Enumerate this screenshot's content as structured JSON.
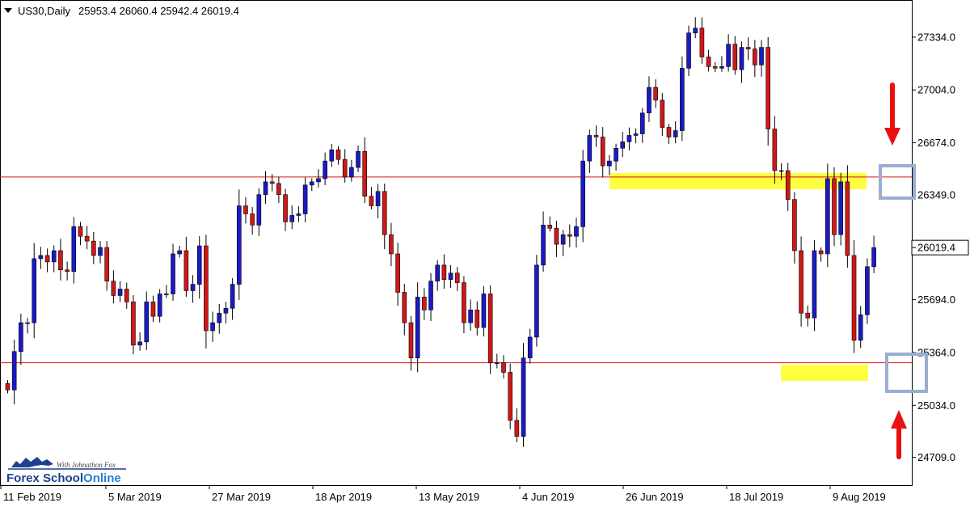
{
  "header": {
    "symbol": "US30,Daily",
    "ohlc": "25953.4 26060.4 25942.4 26019.4"
  },
  "price_axis": {
    "ticks": [
      "27334.0",
      "27004.0",
      "26674.0",
      "26349.0",
      "26019.4",
      "25694.0",
      "25364.0",
      "25034.0",
      "24709.0"
    ],
    "current_price_label": "26019.4"
  },
  "time_axis": {
    "labels": [
      "11 Feb 2019",
      "5 Mar 2019",
      "27 Mar 2019",
      "18 Apr 2019",
      "13 May 2019",
      "4 Jun 2019",
      "26 Jun 2019",
      "18 Jul 2019",
      "9 Aug 2019"
    ]
  },
  "logo": {
    "tagline": "With Johnathon Fox",
    "brand_part1": "Forex School",
    "brand_part2": "Online"
  },
  "colors": {
    "bull": "#1a1ac8",
    "bear": "#d01818",
    "line": "#e01010",
    "zone": "#ffff40",
    "box": "#9aaed0",
    "arrow": "#e81010"
  },
  "chart_data": {
    "type": "candlestick",
    "y_range": [
      24609,
      27500
    ],
    "resistance_level": 26460,
    "support_level": 25300,
    "closes": [
      25130,
      25370,
      25550,
      25550,
      25950,
      25970,
      25930,
      26000,
      25880,
      25870,
      26150,
      26090,
      26060,
      25970,
      26020,
      25810,
      25720,
      25760,
      25680,
      25410,
      25430,
      25680,
      25590,
      25730,
      25730,
      25980,
      26000,
      25750,
      25790,
      26030,
      25500,
      25550,
      25610,
      25640,
      25790,
      26280,
      26230,
      26160,
      26350,
      26430,
      26420,
      26350,
      26180,
      26220,
      26230,
      26410,
      26430,
      26450,
      26560,
      26630,
      26570,
      26460,
      26520,
      26620,
      26340,
      26280,
      26370,
      26100,
      25980,
      25740,
      25550,
      25330,
      25710,
      25630,
      25810,
      25910,
      25820,
      25860,
      25800,
      25550,
      25630,
      25520,
      25730,
      25300,
      25300,
      25240,
      24940,
      24840,
      25330,
      25460,
      25910,
      26160,
      26140,
      26040,
      26100,
      26090,
      26150,
      26560,
      26720,
      26710,
      26530,
      26560,
      26640,
      26680,
      26720,
      26730,
      26860,
      27020,
      26940,
      26770,
      26710,
      26750,
      27140,
      27360,
      27390,
      27210,
      27150,
      27140,
      27150,
      27290,
      27130,
      27270,
      27260,
      27160,
      27270,
      26760,
      26500,
      26500,
      26320,
      26000,
      25610,
      25580,
      26000,
      25980,
      26450,
      26100,
      26430,
      25970,
      25440,
      25600,
      25900,
      26019.4
    ]
  }
}
